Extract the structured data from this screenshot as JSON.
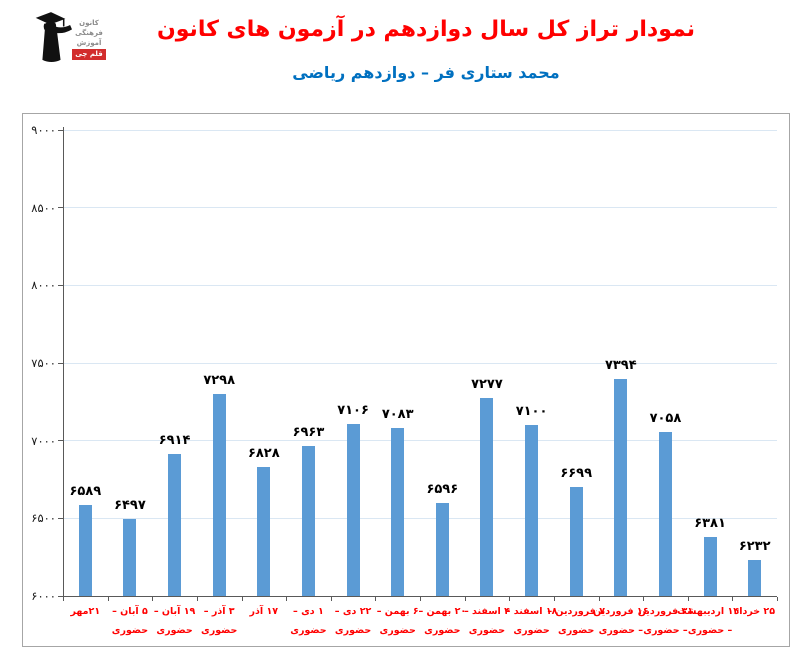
{
  "logo": {
    "lines": [
      "کانون",
      "فرهنگی",
      "آموزش"
    ],
    "badge": "قلم چی",
    "badge_color": "#d22c2c"
  },
  "header": {
    "title": "نمودار تراز کل سال دوازدهم در آزمون های کانون",
    "subtitle": "محمد ستاری فر – دوازدهم ریاضی",
    "title_color": "#ff0000",
    "subtitle_color": "#0070c0"
  },
  "chart_data": {
    "type": "bar",
    "title": "نمودار تراز کل سال دوازدهم در آزمون های کانون",
    "subtitle": "محمد ستاری فر – دوازدهم ریاضی",
    "categories": [
      [
        "۲۱مهر"
      ],
      [
        "۵ آبان –",
        "حضوری"
      ],
      [
        "۱۹ آبان –",
        "حضوری"
      ],
      [
        "۳ آذر –",
        "حضوری"
      ],
      [
        "۱۷ آذر"
      ],
      [
        "۱ دی –",
        "حضوری"
      ],
      [
        "۲۲ دی –",
        "حضوری"
      ],
      [
        "۶ بهمن –",
        "حضوری"
      ],
      [
        "۲۰ بهمن –",
        "حضوری"
      ],
      [
        "۴ اسفند –",
        "حضوری"
      ],
      [
        "۱۸ اسفند –",
        "حضوری"
      ],
      [
        "۷ فروردین –",
        "حضوری"
      ],
      [
        "۱۶ فروردین",
        "– حضوری"
      ],
      [
        "۳۱ فروردین",
        "– حضوری"
      ],
      [
        "۱۴ اردیبهشت",
        "– حضوری"
      ],
      [
        "۲۵ خرداد"
      ]
    ],
    "values": [
      6589,
      6497,
      6914,
      7298,
      6828,
      6963,
      7106,
      7083,
      6596,
      7277,
      7100,
      6699,
      7394,
      7058,
      6381,
      6232
    ],
    "value_labels_fa": [
      "۶۵۸۹",
      "۶۴۹۷",
      "۶۹۱۴",
      "۷۲۹۸",
      "۶۸۲۸",
      "۶۹۶۳",
      "۷۱۰۶",
      "۷۰۸۳",
      "۶۵۹۶",
      "۷۲۷۷",
      "۷۱۰۰",
      "۶۶۹۹",
      "۷۳۹۴",
      "۷۰۵۸",
      "۶۳۸۱",
      "۶۲۳۲"
    ],
    "ylim": [
      6000,
      9000
    ],
    "yticks": [
      6000,
      6500,
      7000,
      7500,
      8000,
      8500,
      9000
    ],
    "ytick_labels_fa": [
      "۶۰۰۰",
      "۶۵۰۰",
      "۷۰۰۰",
      "۷۵۰۰",
      "۸۰۰۰",
      "۸۵۰۰",
      "۹۰۰۰"
    ],
    "grid": true,
    "legend": "none",
    "bar_color": "#5b9bd5",
    "grid_color": "#dae7f3",
    "axis_color": "#595959",
    "value_label_color": "#000000",
    "ytick_label_color": "#1a1a1a",
    "xtick_label_color": "#ff0000"
  }
}
